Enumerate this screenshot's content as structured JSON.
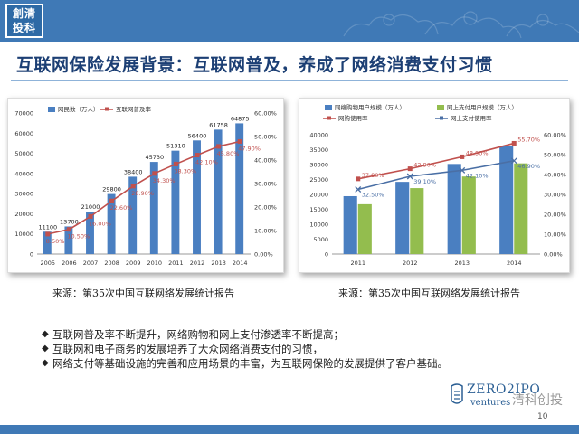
{
  "header": {
    "logo_text": "創清投科",
    "title": "互联网保险发展背景：互联网普及，养成了网络消费支付习惯"
  },
  "colors": {
    "header_blue": "#3f79b6",
    "bar_blue": "#4a7fc1",
    "bar_green": "#93bd4e",
    "line_red": "#c0504d",
    "line_blue": "#4a6fa5"
  },
  "chart_data": [
    {
      "type": "bar",
      "categories": [
        "2005",
        "2006",
        "2007",
        "2008",
        "2009",
        "2010",
        "2011",
        "2012",
        "2013",
        "2014"
      ],
      "series": [
        {
          "name": "网民数（万人）",
          "kind": "bar",
          "axis": "left",
          "values": [
            11100,
            13700,
            21000,
            29800,
            38400,
            45730,
            51310,
            56400,
            61758,
            64875
          ],
          "labels": [
            "11100",
            "13700",
            "21000",
            "29800",
            "38400",
            "45730",
            "51310",
            "56400",
            "61758",
            "64875"
          ]
        },
        {
          "name": "互联网普及率",
          "kind": "line",
          "axis": "right",
          "values": [
            8.5,
            10.5,
            16.0,
            22.6,
            28.9,
            34.3,
            38.3,
            42.1,
            45.8,
            47.9
          ],
          "labels": [
            "8.50%",
            "10.50%",
            "16.00%",
            "22.60%",
            "28.90%",
            "34.30%",
            "38.30%",
            "42.10%",
            "45.80%",
            "47.90%"
          ]
        }
      ],
      "y_left": {
        "min": 0,
        "max": 70000,
        "ticks": [
          "0",
          "10000",
          "20000",
          "30000",
          "40000",
          "50000",
          "60000",
          "70000"
        ]
      },
      "y_right": {
        "min": 0,
        "max": 60,
        "ticks": [
          "0.00%",
          "10.00%",
          "20.00%",
          "30.00%",
          "40.00%",
          "50.00%",
          "60.00%"
        ]
      },
      "legend_position": "top-left",
      "grid": false,
      "source": "来源：第35次中国互联网络发展统计报告"
    },
    {
      "type": "bar",
      "categories": [
        "2011",
        "2012",
        "2013",
        "2014"
      ],
      "series": [
        {
          "name": "网络购物用户规模（万人）",
          "kind": "bar",
          "axis": "left",
          "values": [
            19400,
            24200,
            30200,
            36100
          ]
        },
        {
          "name": "网上支付用户规模（万人）",
          "kind": "bar",
          "axis": "left",
          "values": [
            16700,
            22100,
            26000,
            30400
          ]
        },
        {
          "name": "网购使用率",
          "kind": "line",
          "axis": "right",
          "values": [
            37.8,
            42.9,
            48.9,
            55.7
          ],
          "labels": [
            "37.80%",
            "42.90%",
            "48.90%",
            "55.70%"
          ]
        },
        {
          "name": "网上支付使用率",
          "kind": "line",
          "axis": "right",
          "values": [
            32.5,
            39.1,
            42.1,
            46.9
          ],
          "labels": [
            "32.50%",
            "39.10%",
            "42.10%",
            "46.90%"
          ]
        }
      ],
      "y_left": {
        "min": 0,
        "max": 40000,
        "ticks": [
          "0",
          "5000",
          "10000",
          "15000",
          "20000",
          "25000",
          "30000",
          "35000",
          "40000"
        ]
      },
      "y_right": {
        "min": 0,
        "max": 60,
        "ticks": [
          "0.00%",
          "10.00%",
          "20.00%",
          "30.00%",
          "40.00%",
          "50.00%",
          "60.00%"
        ]
      },
      "legend_position": "top",
      "grid": false,
      "source": "来源：第35次中国互联网络发展统计报告"
    }
  ],
  "bullets": [
    "互联网普及率不断提升，网络购物和网上支付渗透率不断提高；",
    "互联网和电子商务的发展培养了大众网络消费支付的习惯，",
    "网络支付等基础设施的完善和应用场景的丰富，为互联网保险的发展提供了客户基础。"
  ],
  "bullet_mark": "◆",
  "footer": {
    "brand_name": "ZERO2IPO",
    "brand_sub": "ventures",
    "watermark": "清科创投",
    "page_number": "10"
  }
}
